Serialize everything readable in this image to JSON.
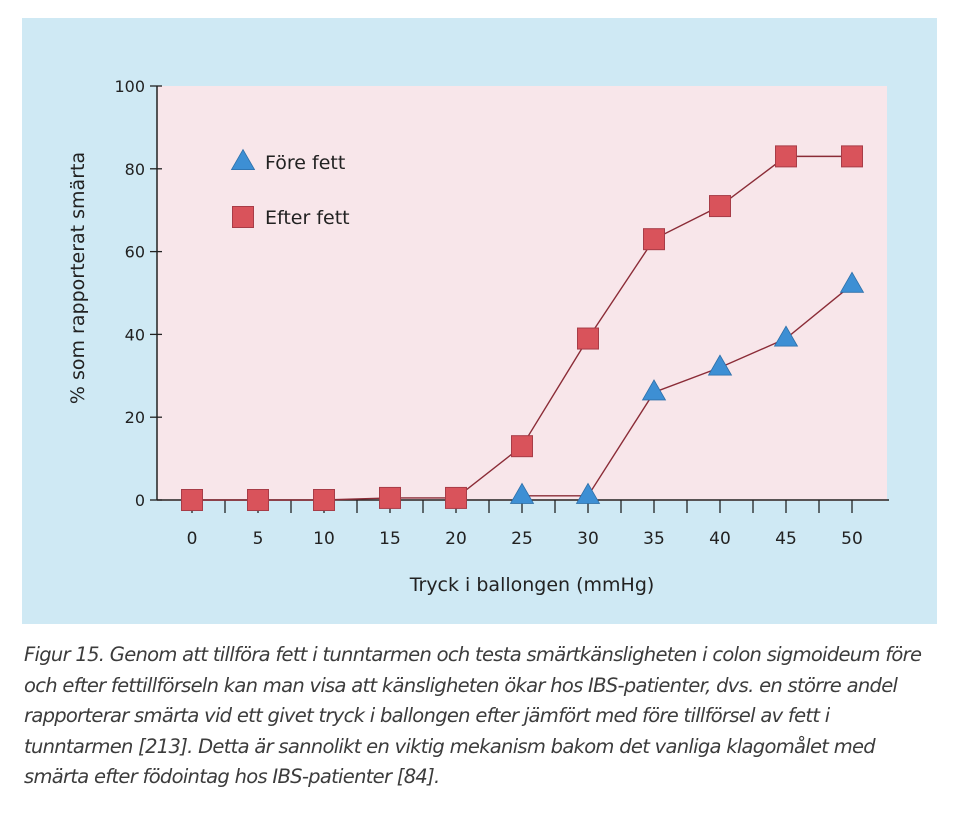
{
  "chart_data": {
    "type": "line",
    "title": "",
    "xlabel": "Tryck i ballongen (mmHg)",
    "ylabel": "% som rapporterat smärta",
    "x": [
      0,
      5,
      10,
      15,
      20,
      25,
      30,
      35,
      40,
      45,
      50
    ],
    "xlim": [
      0,
      50
    ],
    "ylim": [
      0,
      100
    ],
    "x_ticks": [
      "0",
      "5",
      "10",
      "15",
      "20",
      "25",
      "30",
      "35",
      "40",
      "45",
      "50"
    ],
    "y_ticks": [
      "0",
      "20",
      "40",
      "60",
      "80",
      "100"
    ],
    "grid": false,
    "legend_position": "top-left",
    "series": [
      {
        "name": "Före fett",
        "marker": "triangle",
        "color": "#3d8fd4",
        "x": [
          25,
          30,
          35,
          40,
          45,
          50
        ],
        "values": [
          1,
          1,
          26,
          32,
          39,
          52
        ]
      },
      {
        "name": "Efter fett",
        "marker": "square",
        "color": "#d9535b",
        "x": [
          0,
          5,
          10,
          15,
          20,
          25,
          30,
          35,
          40,
          45,
          50
        ],
        "values": [
          0,
          0,
          0,
          0.5,
          0.5,
          13,
          39,
          63,
          71,
          83,
          83
        ]
      }
    ],
    "colors": {
      "panel_background": "#cfe9f4",
      "plot_background": "#f8e6ea",
      "line": "#8b2c37"
    }
  },
  "caption": "Figur 15. Genom att tillföra fett i tunntarmen och testa smärtkänsligheten i colon sigmoideum före och efter fettillförseln kan man visa att känsligheten ökar hos IBS-patienter, dvs. en större andel rapporterar smärta vid ett givet tryck i ballongen efter jämfört med före tillförsel av fett i tunntarmen [213]. Detta är sannolikt en viktig mekanism bakom det vanliga klagomålet med smärta efter födointag hos IBS-patienter [84]."
}
